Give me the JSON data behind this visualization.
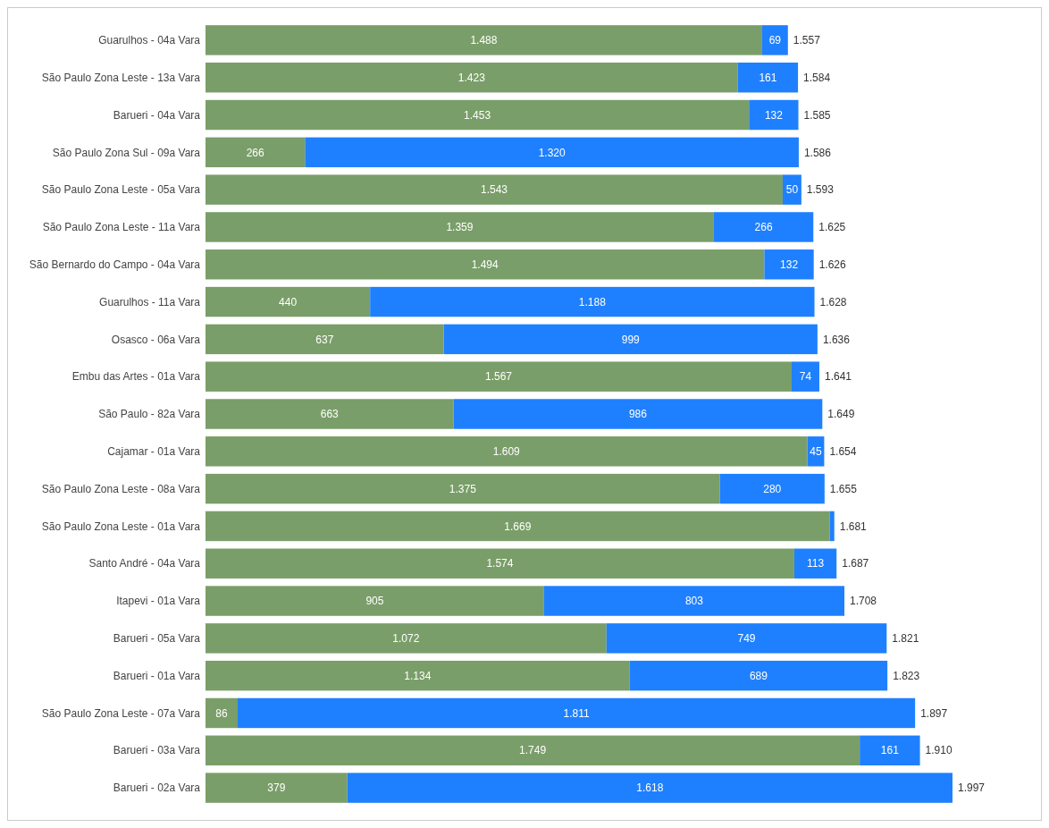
{
  "chart_data": {
    "type": "bar",
    "orientation": "horizontal",
    "stacked": true,
    "categories": [
      "Guarulhos - 04a Vara",
      "São Paulo Zona Leste - 13a Vara",
      "Barueri - 04a Vara",
      "São Paulo Zona Sul - 09a Vara",
      "São Paulo Zona Leste - 05a Vara",
      "São Paulo Zona Leste - 11a Vara",
      "São Bernardo do Campo - 04a Vara",
      "Guarulhos - 11a Vara",
      "Osasco - 06a Vara",
      "Embu das Artes - 01a Vara",
      "São Paulo - 82a Vara",
      "Cajamar - 01a Vara",
      "São Paulo Zona Leste - 08a Vara",
      "São Paulo Zona Leste - 01a Vara",
      "Santo André - 04a Vara",
      "Itapevi - 01a Vara",
      "Barueri - 05a Vara",
      "Barueri - 01a Vara",
      "São Paulo Zona Leste - 07a Vara",
      "Barueri - 03a Vara",
      "Barueri - 02a Vara"
    ],
    "series": [
      {
        "color": "#7a9e69",
        "values": [
          1488,
          1423,
          1453,
          266,
          1543,
          1359,
          1494,
          440,
          637,
          1567,
          663,
          1609,
          1375,
          1669,
          1574,
          905,
          1072,
          1134,
          86,
          1749,
          379
        ],
        "value_labels": [
          "1.488",
          "1.423",
          "1.453",
          "266",
          "1.543",
          "1.359",
          "1.494",
          "440",
          "637",
          "1.567",
          "663",
          "1.609",
          "1.375",
          "1.669",
          "1.574",
          "905",
          "1.072",
          "1.134",
          "86",
          "1.749",
          "379"
        ]
      },
      {
        "color": "#1f80ff",
        "values": [
          69,
          161,
          132,
          1320,
          50,
          266,
          132,
          1188,
          999,
          74,
          986,
          45,
          280,
          12,
          113,
          803,
          749,
          689,
          1811,
          161,
          1618
        ],
        "value_labels": [
          "69",
          "161",
          "132",
          "1.320",
          "50",
          "266",
          "132",
          "1.188",
          "999",
          "74",
          "986",
          "45",
          "280",
          null,
          "113",
          "803",
          "749",
          "689",
          "1.811",
          "161",
          "1.618"
        ]
      }
    ],
    "totals": [
      "1.557",
      "1.584",
      "1.585",
      "1.586",
      "1.593",
      "1.625",
      "1.626",
      "1.628",
      "1.636",
      "1.641",
      "1.649",
      "1.654",
      "1.655",
      "1.681",
      "1.687",
      "1.708",
      "1.821",
      "1.823",
      "1.897",
      "1.910",
      "1.997"
    ]
  }
}
